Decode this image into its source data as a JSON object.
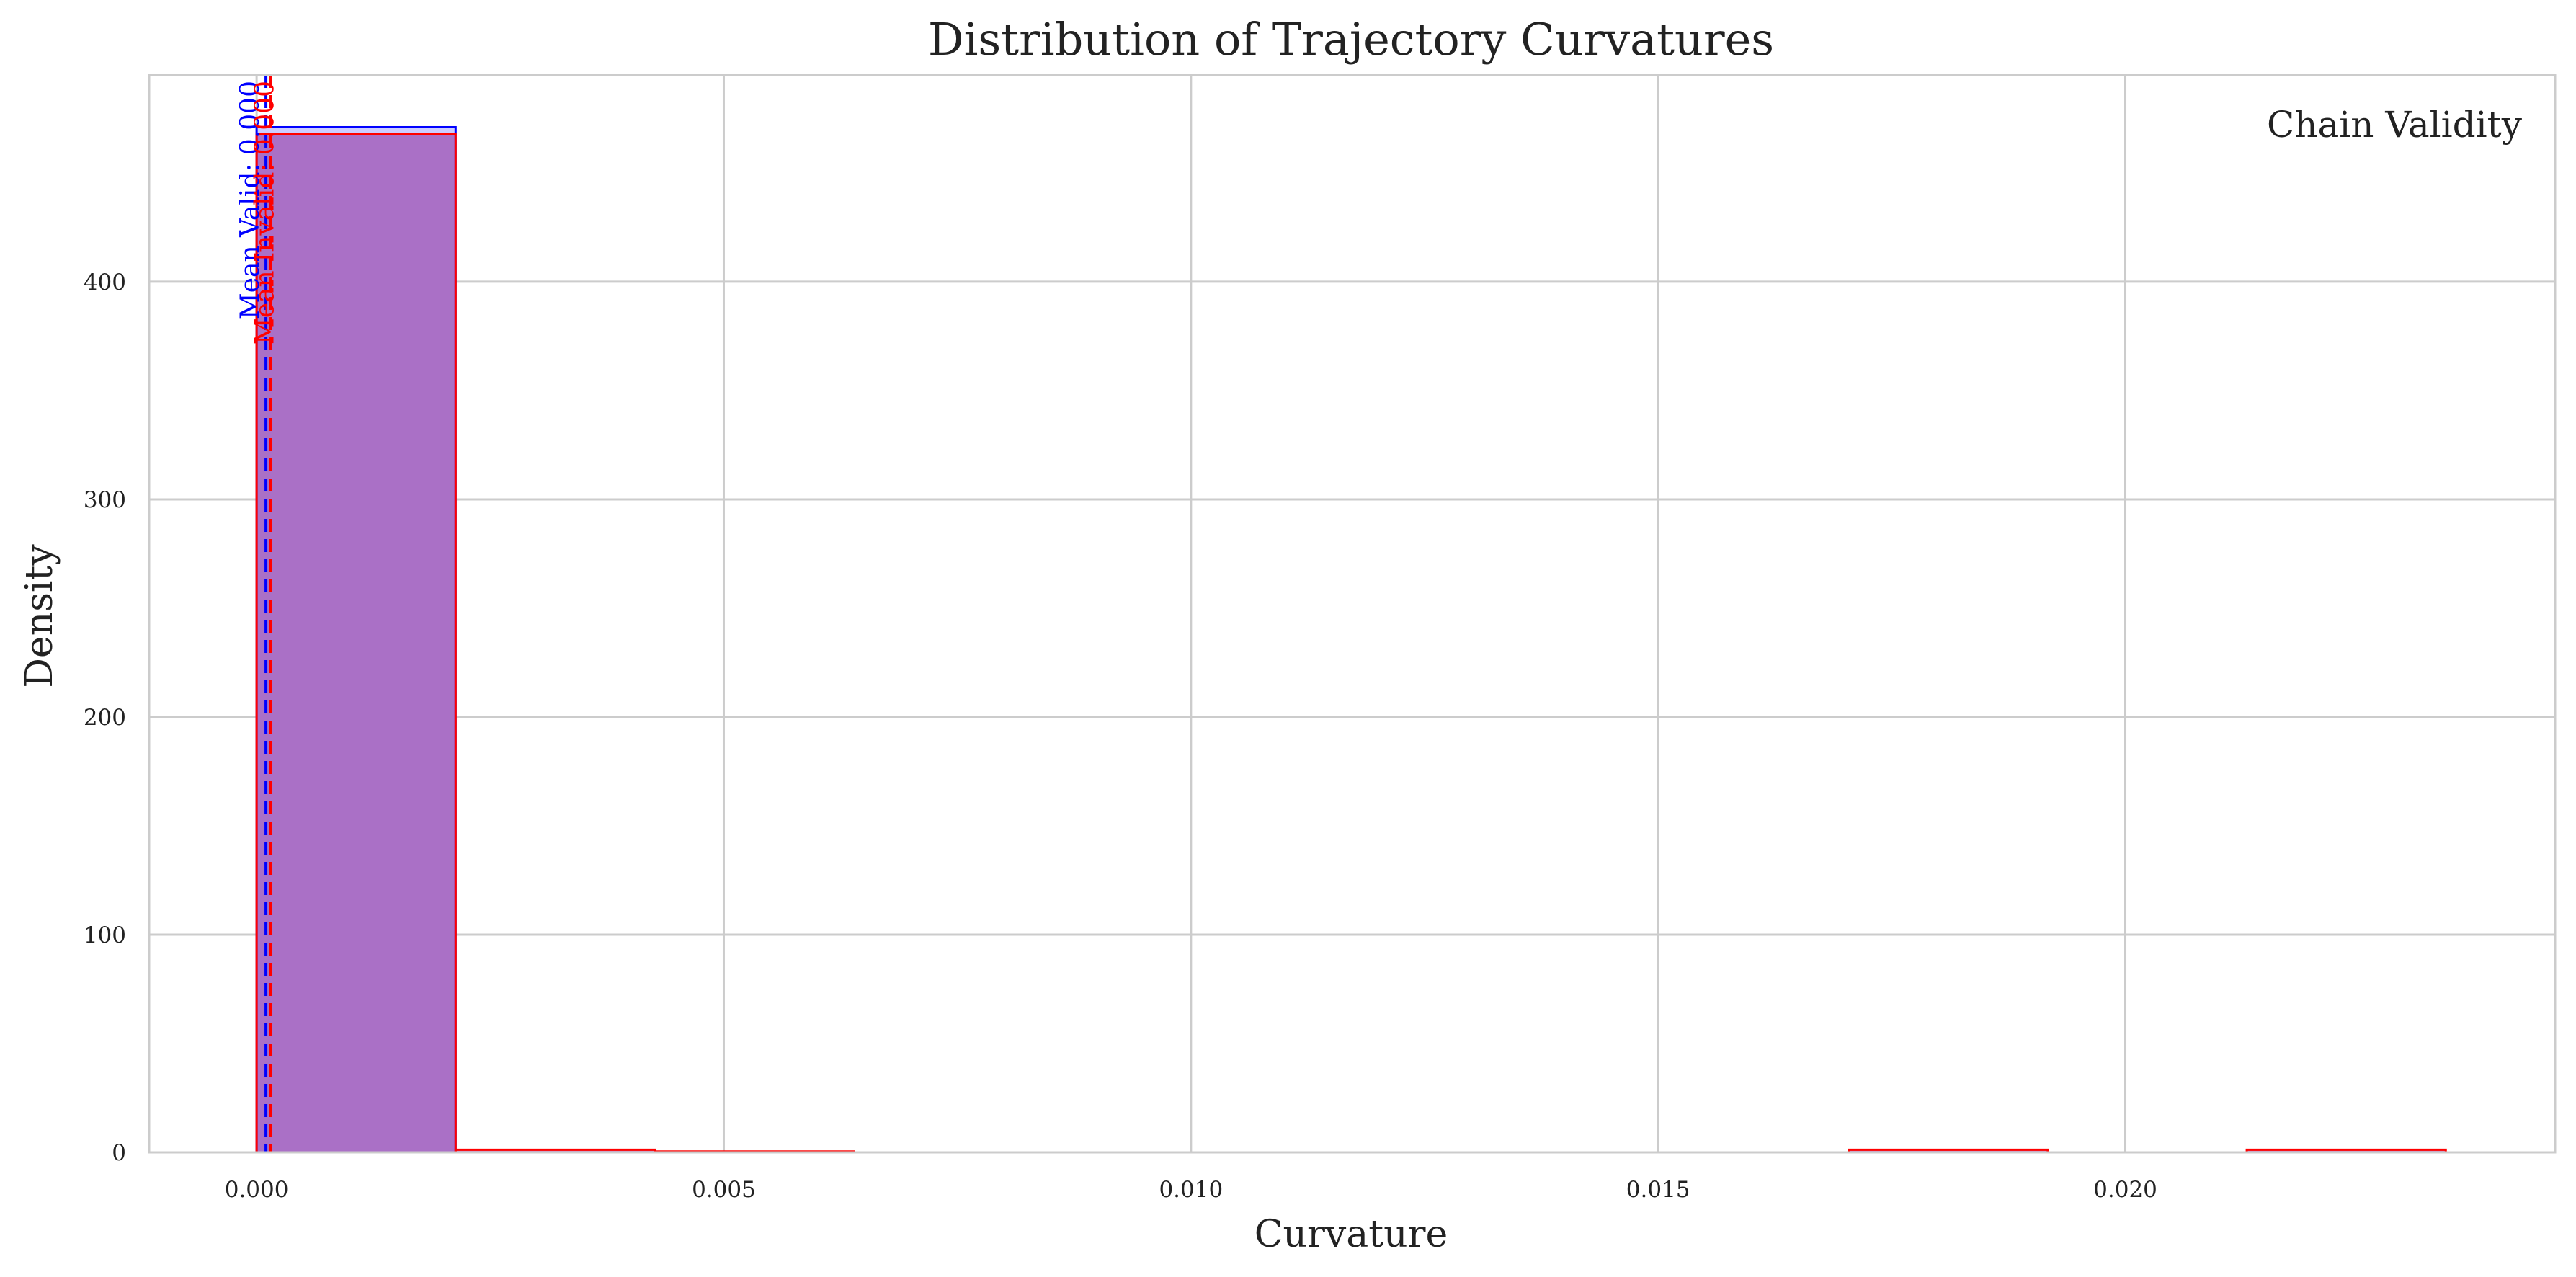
{
  "chart_data": {
    "type": "bar",
    "title": "Distribution of Trajectory Curvatures",
    "xlabel": "Curvature",
    "ylabel": "Density",
    "xlim": [
      -0.00115,
      0.0246
    ],
    "ylim": [
      0,
      495
    ],
    "xticks": [
      0.0,
      0.005,
      0.01,
      0.015,
      0.02
    ],
    "xtick_labels": [
      "0.000",
      "0.005",
      "0.010",
      "0.015",
      "0.020"
    ],
    "yticks": [
      0,
      100,
      200,
      300,
      400
    ],
    "ytick_labels": [
      "0",
      "100",
      "200",
      "300",
      "400"
    ],
    "grid": true,
    "legend": {
      "title": "Chain Validity",
      "placement": "top-right"
    },
    "series": [
      {
        "color": "#0000ff",
        "fill": "#ccccff",
        "bins": [
          {
            "x0": 0.0,
            "x1": 0.00213,
            "density": 471
          }
        ]
      },
      {
        "color": "#ff0000",
        "fill": "#800080",
        "bins": [
          {
            "x0": 0.0,
            "x1": 0.00213,
            "density": 468
          },
          {
            "x0": 0.00213,
            "x1": 0.00426,
            "density": 1.2
          },
          {
            "x0": 0.00426,
            "x1": 0.00639,
            "density": 0.4
          },
          {
            "x0": 0.01704,
            "x1": 0.01917,
            "density": 1.2
          },
          {
            "x0": 0.0213,
            "x1": 0.02343,
            "density": 1.2
          }
        ]
      }
    ],
    "mean_lines": [
      {
        "x": 0.0001,
        "color": "#0000ff",
        "label": "Mean Valid: 0.000"
      },
      {
        "x": 0.00015,
        "color": "#ff0000",
        "label": "Mean Invalid: 0.000"
      }
    ]
  }
}
